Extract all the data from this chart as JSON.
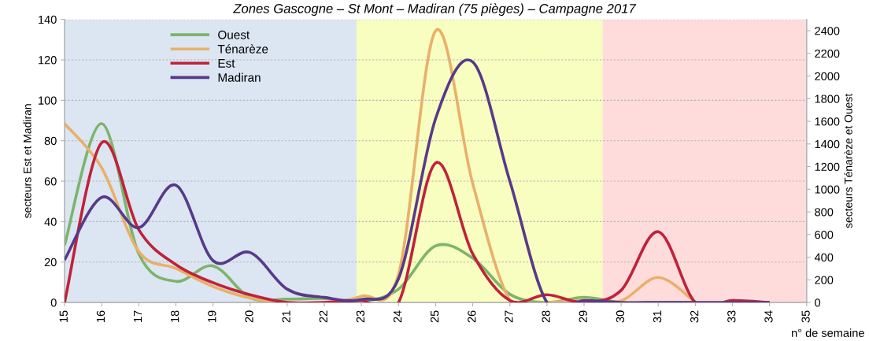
{
  "chart_data": {
    "type": "line",
    "title": "Zones Gascogne – St Mont – Madiran (75 pièges) – Campagne 2017",
    "xlabel": "n° de semaine",
    "ylabel": "secteurs Est et Madiran",
    "y2label": "secteurs Ténarèze et Ouest",
    "x": [
      15,
      16,
      17,
      18,
      19,
      20,
      21,
      22,
      23,
      24,
      25,
      26,
      27,
      28,
      29,
      30,
      31,
      32,
      33,
      34
    ],
    "xlim": [
      15,
      35
    ],
    "xticks": [
      15,
      16,
      17,
      18,
      19,
      20,
      21,
      22,
      23,
      24,
      25,
      26,
      27,
      28,
      29,
      30,
      31,
      32,
      33,
      34,
      35
    ],
    "ylim": [
      0,
      140
    ],
    "yticks": [
      0,
      20,
      40,
      60,
      80,
      100,
      120,
      140
    ],
    "y2lim": [
      0,
      2500
    ],
    "y2ticks": [
      0,
      200,
      400,
      600,
      800,
      1000,
      1200,
      1400,
      1600,
      1800,
      2000,
      2200,
      2400
    ],
    "grid": "y",
    "legend": "top left",
    "marker": "none",
    "line_style": "solid",
    "series": [
      {
        "name": "Ouest",
        "color": "#7db46c",
        "axis": "y2",
        "values": [
          506,
          1580,
          430,
          187,
          323,
          41,
          30,
          35,
          10,
          118,
          500,
          392,
          73,
          0,
          46,
          0,
          0,
          0,
          null,
          null
        ]
      },
      {
        "name": "Ténarèze",
        "color": "#e9b06a",
        "axis": "y2",
        "values": [
          1580,
          1190,
          450,
          300,
          141,
          39,
          0,
          0,
          55,
          250,
          2400,
          1050,
          20,
          0,
          20,
          15,
          221,
          0,
          null,
          null
        ]
      },
      {
        "name": "Est",
        "color": "#c0223a",
        "values": [
          0,
          79,
          36,
          18.7,
          9.8,
          3.8,
          0,
          0,
          1,
          0,
          69,
          24,
          1,
          3.8,
          0,
          6,
          35,
          0,
          1,
          0
        ]
      },
      {
        "name": "Madiran",
        "color": "#573a8a",
        "values": [
          21,
          52,
          37,
          58,
          20.7,
          24.7,
          6.6,
          2.5,
          1.5,
          11.8,
          91,
          119,
          60,
          0,
          1,
          0,
          0,
          0,
          0,
          0
        ]
      }
    ],
    "bands": [
      {
        "axis": "x",
        "from": 15,
        "to": 22.87,
        "color": "#dce6f2"
      },
      {
        "axis": "x",
        "from": 22.87,
        "to": 29.5,
        "color": "#f8fdc0"
      },
      {
        "axis": "x",
        "from": 29.5,
        "to": 35,
        "color": "#ffdcdc"
      }
    ]
  }
}
